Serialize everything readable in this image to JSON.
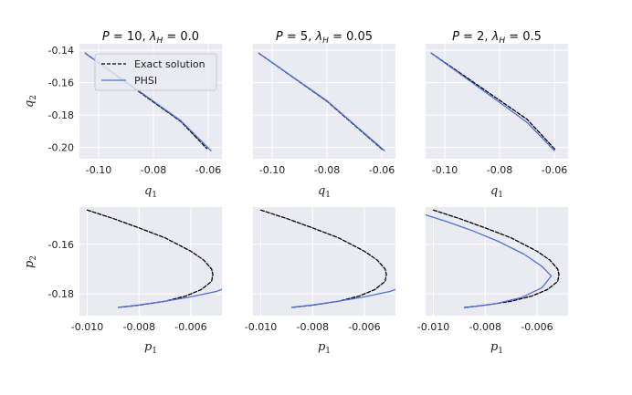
{
  "figure": {
    "legend": {
      "exact": "Exact solution",
      "approx": "PHSI"
    },
    "colors": {
      "background": "#EAEAF2",
      "grid": "#FFFFFF",
      "exact": "#000000",
      "approx": "#4C72D9"
    }
  },
  "chart_data": [
    {
      "type": "line",
      "title": "P = 10, λH = 0.0",
      "title_parts": {
        "a": "P",
        "b": " = 10, ",
        "c": "λ",
        "d": "H",
        "e": " = 0.0"
      },
      "xlabel": "q",
      "xsub": "1",
      "ylabel": "q",
      "ysub": "2",
      "xlim": [
        -0.107,
        -0.055
      ],
      "ylim": [
        -0.207,
        -0.136
      ],
      "xticks": [
        -0.1,
        -0.08,
        -0.06
      ],
      "xtick_labels": [
        "-0.10",
        "-0.08",
        "-0.06"
      ],
      "yticks": [
        -0.14,
        -0.16,
        -0.18,
        -0.2
      ],
      "ytick_labels": [
        "-0.14",
        "-0.16",
        "-0.18",
        "-0.20"
      ],
      "series": [
        {
          "name": "Exact solution",
          "style": "dashed",
          "x": [
            -0.1049,
            -0.09,
            -0.08,
            -0.07,
            -0.0605
          ],
          "y": [
            -0.1418,
            -0.1599,
            -0.172,
            -0.184,
            -0.2007
          ]
        },
        {
          "name": "PHSI",
          "style": "solid",
          "x": [
            -0.1049,
            -0.09,
            -0.08,
            -0.07,
            -0.059
          ],
          "y": [
            -0.1418,
            -0.1595,
            -0.1715,
            -0.1835,
            -0.202
          ]
        }
      ],
      "legend_position": "upper-right"
    },
    {
      "type": "line",
      "title": "P = 5, λH = 0.05",
      "title_parts": {
        "a": "P",
        "b": " = 5, ",
        "c": "λ",
        "d": "H",
        "e": " = 0.05"
      },
      "xlabel": "q",
      "xsub": "1",
      "ylabel": "",
      "ysub": "",
      "xlim": [
        -0.107,
        -0.055
      ],
      "ylim": [
        -0.207,
        -0.136
      ],
      "xticks": [
        -0.1,
        -0.08,
        -0.06
      ],
      "xtick_labels": [
        "-0.10",
        "-0.08",
        "-0.06"
      ],
      "yticks": [
        -0.14,
        -0.16,
        -0.18,
        -0.2
      ],
      "ytick_labels": [],
      "series": [
        {
          "name": "Exact solution",
          "style": "dashed",
          "x": [
            -0.1049,
            -0.08,
            -0.0595
          ],
          "y": [
            -0.1418,
            -0.1715,
            -0.2017
          ]
        },
        {
          "name": "PHSI",
          "style": "solid",
          "x": [
            -0.1049,
            -0.08,
            -0.059
          ],
          "y": [
            -0.1418,
            -0.1712,
            -0.202
          ]
        }
      ]
    },
    {
      "type": "line",
      "title": "P = 2, λH = 0.5",
      "title_parts": {
        "a": "P",
        "b": " = 2, ",
        "c": "λ",
        "d": "H",
        "e": " = 0.5"
      },
      "xlabel": "q",
      "xsub": "1",
      "ylabel": "",
      "ysub": "",
      "xlim": [
        -0.107,
        -0.055
      ],
      "ylim": [
        -0.207,
        -0.136
      ],
      "xticks": [
        -0.1,
        -0.08,
        -0.06
      ],
      "xtick_labels": [
        "-0.10",
        "-0.08",
        "-0.06"
      ],
      "yticks": [
        -0.14,
        -0.16,
        -0.18,
        -0.2
      ],
      "ytick_labels": [],
      "series": [
        {
          "name": "Exact solution",
          "style": "dashed",
          "x": [
            -0.1049,
            -0.09,
            -0.08,
            -0.07,
            -0.0595
          ],
          "y": [
            -0.1418,
            -0.1592,
            -0.1709,
            -0.1826,
            -0.2017
          ]
        },
        {
          "name": "PHSI",
          "style": "solid",
          "x": [
            -0.1049,
            -0.09,
            -0.08,
            -0.07,
            -0.06
          ],
          "y": [
            -0.1418,
            -0.16,
            -0.1722,
            -0.1845,
            -0.202
          ]
        }
      ]
    },
    {
      "type": "line",
      "title": "",
      "xlabel": "p",
      "xsub": "1",
      "ylabel": "p",
      "ysub": "2",
      "xlim": [
        -0.0103,
        -0.0048
      ],
      "ylim": [
        -0.1888,
        -0.145
      ],
      "xticks": [
        -0.01,
        -0.008,
        -0.006
      ],
      "xtick_labels": [
        "-0.010",
        "-0.008",
        "-0.006"
      ],
      "yticks": [
        -0.16,
        -0.18
      ],
      "ytick_labels": [
        "-0.16",
        "-0.18"
      ],
      "series": [
        {
          "name": "Exact solution",
          "style": "dashed",
          "x": [
            -0.01,
            -0.009,
            -0.008,
            -0.007,
            -0.006,
            -0.0055,
            -0.0052,
            -0.00515,
            -0.0052,
            -0.0056,
            -0.0062,
            -0.007,
            -0.008,
            -0.0088
          ],
          "y": [
            -0.1462,
            -0.1496,
            -0.1534,
            -0.1574,
            -0.1628,
            -0.1664,
            -0.17,
            -0.1722,
            -0.175,
            -0.1783,
            -0.1809,
            -0.183,
            -0.1846,
            -0.1855
          ]
        },
        {
          "name": "PHSI",
          "style": "solid",
          "x": [
            -0.0088,
            -0.008,
            -0.007,
            -0.006,
            -0.005,
            -0.0048
          ],
          "y": [
            -0.1855,
            -0.1845,
            -0.183,
            -0.1812,
            -0.179,
            -0.1782
          ]
        }
      ]
    },
    {
      "type": "line",
      "title": "",
      "xlabel": "p",
      "xsub": "1",
      "ylabel": "",
      "ysub": "",
      "xlim": [
        -0.0103,
        -0.0048
      ],
      "ylim": [
        -0.1888,
        -0.145
      ],
      "xticks": [
        -0.01,
        -0.008,
        -0.006
      ],
      "xtick_labels": [
        "-0.010",
        "-0.008",
        "-0.006"
      ],
      "yticks": [
        -0.16,
        -0.18
      ],
      "ytick_labels": [],
      "series": [
        {
          "name": "Exact solution",
          "style": "dashed",
          "x": [
            -0.01,
            -0.009,
            -0.008,
            -0.007,
            -0.006,
            -0.0055,
            -0.0052,
            -0.00515,
            -0.0052,
            -0.0056,
            -0.0062,
            -0.007,
            -0.008,
            -0.0088
          ],
          "y": [
            -0.1462,
            -0.1496,
            -0.1534,
            -0.1574,
            -0.1628,
            -0.1664,
            -0.17,
            -0.1722,
            -0.175,
            -0.1783,
            -0.1809,
            -0.183,
            -0.1846,
            -0.1855
          ]
        },
        {
          "name": "PHSI",
          "style": "solid",
          "x": [
            -0.0088,
            -0.008,
            -0.007,
            -0.006,
            -0.005,
            -0.0048
          ],
          "y": [
            -0.1855,
            -0.1845,
            -0.183,
            -0.1812,
            -0.179,
            -0.1782
          ]
        }
      ]
    },
    {
      "type": "line",
      "title": "",
      "xlabel": "p",
      "xsub": "1",
      "ylabel": "",
      "ysub": "",
      "xlim": [
        -0.0103,
        -0.0048
      ],
      "ylim": [
        -0.1888,
        -0.145
      ],
      "xticks": [
        -0.01,
        -0.008,
        -0.006
      ],
      "xtick_labels": [
        "-0.010",
        "-0.008",
        "-0.006"
      ],
      "yticks": [
        -0.16,
        -0.18
      ],
      "ytick_labels": [],
      "series": [
        {
          "name": "Exact solution",
          "style": "dashed",
          "x": [
            -0.01,
            -0.009,
            -0.008,
            -0.007,
            -0.006,
            -0.0055,
            -0.0052,
            -0.00515,
            -0.0052,
            -0.0056,
            -0.0062,
            -0.007,
            -0.008,
            -0.0088
          ],
          "y": [
            -0.1462,
            -0.1496,
            -0.1534,
            -0.1574,
            -0.1628,
            -0.1664,
            -0.17,
            -0.1722,
            -0.175,
            -0.1783,
            -0.1809,
            -0.183,
            -0.1846,
            -0.1855
          ]
        },
        {
          "name": "PHSI",
          "style": "solid",
          "x": [
            -0.0105,
            -0.0095,
            -0.0085,
            -0.0075,
            -0.0065,
            -0.0058,
            -0.00545,
            -0.0058,
            -0.0066,
            -0.0076,
            -0.0088
          ],
          "y": [
            -0.1475,
            -0.1508,
            -0.1545,
            -0.1588,
            -0.164,
            -0.169,
            -0.1728,
            -0.1775,
            -0.1815,
            -0.184,
            -0.1856
          ]
        }
      ]
    }
  ]
}
